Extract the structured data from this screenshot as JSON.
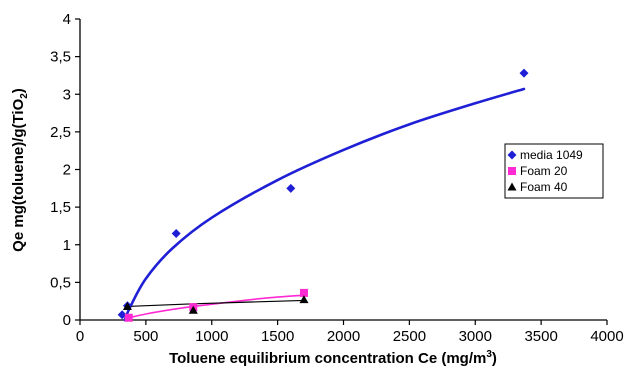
{
  "chart_data": {
    "type": "scatter",
    "title": "",
    "xlabel": "Toluene equilibrium concentration Ce (mg/m",
    "xlabel_sup": "3",
    "xlabel_end": ")",
    "ylabel": "Qe mg(toluene)/g(TiO",
    "ylabel_sub": "2",
    "ylabel_end": ")",
    "xlim": [
      0,
      4000
    ],
    "ylim": [
      0,
      4
    ],
    "x_ticks": [
      0,
      500,
      1000,
      1500,
      2000,
      2500,
      3000,
      3500,
      4000
    ],
    "y_ticks": [
      0,
      0.5,
      1,
      1.5,
      2,
      2.5,
      3,
      3.5,
      4
    ],
    "x_tick_labels": [
      "0",
      "500",
      "1000",
      "1500",
      "2000",
      "2500",
      "3000",
      "3500",
      "4000"
    ],
    "y_tick_labels": [
      "0",
      "0,5",
      "1",
      "1,5",
      "2",
      "2,5",
      "3",
      "3,5",
      "4"
    ],
    "grid": false,
    "legend_position": "right",
    "series": [
      {
        "name": "media 1049",
        "color": "#1f1fd6",
        "marker": "diamond",
        "points": [
          [
            320,
            0.07
          ],
          [
            360,
            0.19
          ],
          [
            730,
            1.15
          ],
          [
            1600,
            1.75
          ],
          [
            3370,
            3.28
          ]
        ],
        "trend": [
          [
            340,
            0.0
          ],
          [
            380,
            0.17
          ],
          [
            500,
            0.55
          ],
          [
            700,
            0.95
          ],
          [
            1000,
            1.36
          ],
          [
            1500,
            1.86
          ],
          [
            2000,
            2.26
          ],
          [
            2500,
            2.6
          ],
          [
            3000,
            2.88
          ],
          [
            3370,
            3.07
          ]
        ]
      },
      {
        "name": "Foam 20",
        "color": "#ff2bd2",
        "marker": "square",
        "points": [
          [
            370,
            0.03
          ],
          [
            860,
            0.17
          ],
          [
            1700,
            0.36
          ]
        ],
        "trend": [
          [
            370,
            0.03
          ],
          [
            500,
            0.08
          ],
          [
            700,
            0.14
          ],
          [
            860,
            0.18
          ],
          [
            1100,
            0.23
          ],
          [
            1400,
            0.29
          ],
          [
            1700,
            0.33
          ]
        ]
      },
      {
        "name": "Foam 40",
        "color": "#000000",
        "marker": "triangle",
        "points": [
          [
            360,
            0.18
          ],
          [
            860,
            0.13
          ],
          [
            1700,
            0.27
          ]
        ],
        "trend": [
          [
            360,
            0.18
          ],
          [
            860,
            0.215
          ],
          [
            1700,
            0.26
          ]
        ]
      }
    ]
  }
}
